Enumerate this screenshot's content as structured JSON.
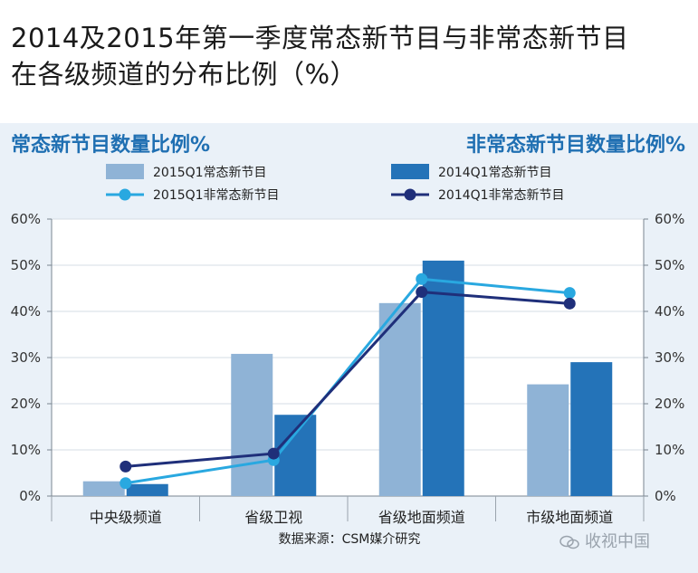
{
  "title_lines": [
    "2014及2015年第一季度常态新节目与非常态新节目",
    "在各级频道的分布比例（%）"
  ],
  "chart_data": {
    "type": "bar+line",
    "title": "2014及2015年第一季度常态新节目与非常态新节目在各级频道的分布比例（%）",
    "ylabel_left": "常态新节目数量比例%",
    "ylabel_right": "非常态新节目数量比例%",
    "categories": [
      "中央级频道",
      "省级卫视",
      "省级地面频道",
      "市级地面频道"
    ],
    "ylim": [
      0,
      60
    ],
    "ticks": [
      "0%",
      "10%",
      "20%",
      "30%",
      "40%",
      "50%",
      "60%"
    ],
    "bar_series": [
      {
        "name": "2015Q1常态新节目",
        "values": [
          3.2,
          30.8,
          41.8,
          24.2
        ],
        "color": "#8fb3d6"
      },
      {
        "name": "2014Q1常态新节目",
        "values": [
          2.6,
          17.6,
          51.0,
          29.0
        ],
        "color": "#2473b8"
      }
    ],
    "line_series": [
      {
        "name": "2015Q1非常态新节目",
        "values": [
          2.8,
          7.8,
          47.0,
          44.0
        ],
        "color": "#29a8e0"
      },
      {
        "name": "2014Q1非常态新节目",
        "values": [
          6.4,
          9.2,
          44.2,
          41.7
        ],
        "color": "#1f2f7a"
      }
    ],
    "source": "数据来源：CSM媒介研究"
  },
  "watermark": "收视中国"
}
